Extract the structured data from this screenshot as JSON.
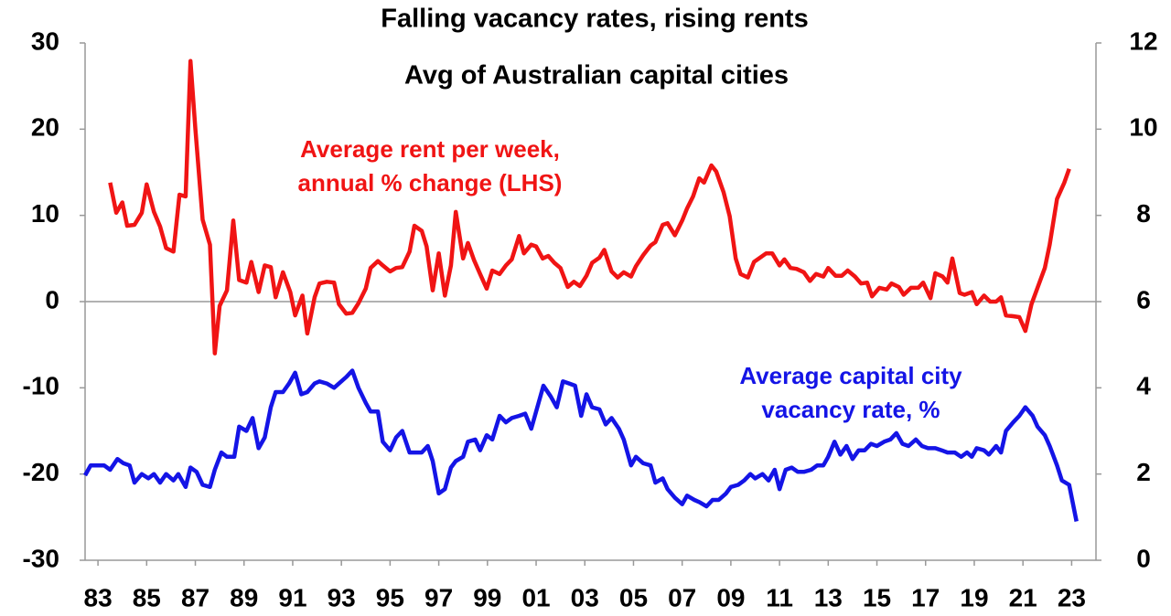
{
  "chart_data": {
    "type": "line",
    "title": "Falling vacancy rates, rising rents",
    "subtitle": "Avg of Australian capital cities",
    "annotations": [
      [
        "Average rent per week,",
        "annual % change (LHS)"
      ],
      [
        "Average capital city",
        "vacancy rate, %"
      ]
    ],
    "xlim": [
      1982.47,
      2024.0
    ],
    "xticks": [
      {
        "value": 1983,
        "label": "83"
      },
      {
        "value": 1985,
        "label": "85"
      },
      {
        "value": 1987,
        "label": "87"
      },
      {
        "value": 1989,
        "label": "89"
      },
      {
        "value": 1991,
        "label": "91"
      },
      {
        "value": 1993,
        "label": "93"
      },
      {
        "value": 1995,
        "label": "95"
      },
      {
        "value": 1997,
        "label": "97"
      },
      {
        "value": 1999,
        "label": "99"
      },
      {
        "value": 2001,
        "label": "01"
      },
      {
        "value": 2003,
        "label": "03"
      },
      {
        "value": 2005,
        "label": "05"
      },
      {
        "value": 2007,
        "label": "07"
      },
      {
        "value": 2009,
        "label": "09"
      },
      {
        "value": 2011,
        "label": "11"
      },
      {
        "value": 2013,
        "label": "13"
      },
      {
        "value": 2015,
        "label": "15"
      },
      {
        "value": 2017,
        "label": "17"
      },
      {
        "value": 2019,
        "label": "19"
      },
      {
        "value": 2021,
        "label": "21"
      },
      {
        "value": 2023,
        "label": "23"
      }
    ],
    "ylim": [
      -30,
      30
    ],
    "yticks": [
      -30,
      -20,
      -10,
      0,
      10,
      20,
      30
    ],
    "y2lim": [
      0,
      12
    ],
    "y2ticks": [
      0,
      2,
      4,
      6,
      8,
      10,
      12
    ],
    "series": [
      {
        "name": "Average rent per week, annual % change (LHS)",
        "color": "#f01414",
        "x": [
          1983.5,
          1983.75,
          1984.0,
          1984.2,
          1984.5,
          1984.8,
          1985.0,
          1985.3,
          1985.55,
          1985.8,
          1986.1,
          1986.35,
          1986.6,
          1986.8,
          1987.0,
          1987.3,
          1987.6,
          1987.8,
          1988.0,
          1988.3,
          1988.56,
          1988.8,
          1989.1,
          1989.3,
          1989.6,
          1989.85,
          1990.1,
          1990.3,
          1990.6,
          1990.9,
          1991.1,
          1991.4,
          1991.6,
          1991.9,
          1992.1,
          1992.4,
          1992.7,
          1992.9,
          1993.2,
          1993.45,
          1993.7,
          1994.0,
          1994.2,
          1994.5,
          1994.7,
          1995.0,
          1995.25,
          1995.5,
          1995.8,
          1996.0,
          1996.3,
          1996.5,
          1996.75,
          1997.0,
          1997.25,
          1997.5,
          1997.7,
          1998.0,
          1998.2,
          1998.45,
          1998.7,
          1998.97,
          1999.2,
          1999.5,
          1999.76,
          2000.0,
          2000.3,
          2000.5,
          2000.8,
          2001.0,
          2001.27,
          2001.5,
          2001.75,
          2002.0,
          2002.3,
          2002.55,
          2002.8,
          2003.07,
          2003.3,
          2003.6,
          2003.8,
          2004.1,
          2004.35,
          2004.6,
          2004.9,
          2005.1,
          2005.4,
          2005.7,
          2005.9,
          2006.2,
          2006.4,
          2006.7,
          2007.0,
          2007.2,
          2007.45,
          2007.7,
          2007.9,
          2008.2,
          2008.4,
          2008.7,
          2008.95,
          2009.2,
          2009.4,
          2009.7,
          2009.95,
          2010.2,
          2010.45,
          2010.7,
          2011.0,
          2011.2,
          2011.45,
          2011.7,
          2012.0,
          2012.25,
          2012.5,
          2012.8,
          2013.0,
          2013.3,
          2013.56,
          2013.8,
          2014.1,
          2014.35,
          2014.6,
          2014.8,
          2015.1,
          2015.4,
          2015.6,
          2015.9,
          2016.1,
          2016.4,
          2016.7,
          2016.9,
          2017.2,
          2017.4,
          2017.7,
          2017.9,
          2018.1,
          2018.4,
          2018.6,
          2018.9,
          2019.1,
          2019.4,
          2019.65,
          2019.9,
          2020.1,
          2020.3,
          2020.6,
          2020.85,
          2021.1,
          2021.35,
          2021.6,
          2021.9,
          2022.1,
          2022.4,
          2022.7,
          2022.9
        ],
        "values": [
          13.8,
          10.3,
          11.5,
          8.8,
          8.9,
          10.3,
          13.6,
          10.4,
          8.7,
          6.2,
          5.8,
          12.4,
          12.2,
          27.9,
          20.1,
          9.5,
          6.6,
          -6.0,
          -0.5,
          1.3,
          9.4,
          2.5,
          2.2,
          4.6,
          1.1,
          4.2,
          4.0,
          0.5,
          3.4,
          1.1,
          -1.6,
          0.7,
          -3.7,
          0.5,
          2.1,
          2.3,
          2.2,
          -0.3,
          -1.4,
          -1.3,
          -0.2,
          1.5,
          3.9,
          4.7,
          4.2,
          3.5,
          3.9,
          4.0,
          5.8,
          8.8,
          8.2,
          6.4,
          1.3,
          5.6,
          0.7,
          4.2,
          10.4,
          5.0,
          6.8,
          4.8,
          3.2,
          1.5,
          3.6,
          3.2,
          4.2,
          4.9,
          7.6,
          5.6,
          6.6,
          6.4,
          5.0,
          5.3,
          4.5,
          3.9,
          1.7,
          2.3,
          1.8,
          3.0,
          4.5,
          5.1,
          6.0,
          3.5,
          2.8,
          3.4,
          2.9,
          4.1,
          5.4,
          6.5,
          6.9,
          8.9,
          9.1,
          7.7,
          9.4,
          10.8,
          12.2,
          14.3,
          13.8,
          15.8,
          15.1,
          12.7,
          9.9,
          5.0,
          3.2,
          2.8,
          4.6,
          5.1,
          5.6,
          5.6,
          4.2,
          4.9,
          3.9,
          3.8,
          3.4,
          2.4,
          3.2,
          2.9,
          3.9,
          3.0,
          3.0,
          3.6,
          2.9,
          2.1,
          2.2,
          0.6,
          1.6,
          1.4,
          2.1,
          1.7,
          0.8,
          1.6,
          1.6,
          2.2,
          0.4,
          3.3,
          2.9,
          2.2,
          5.0,
          1.0,
          0.8,
          1.1,
          -0.3,
          0.7,
          0.0,
          0.0,
          0.5,
          -1.6,
          -1.7,
          -1.8,
          -3.4,
          -0.3,
          1.6,
          3.9,
          6.6,
          11.9,
          13.8,
          15.4
        ]
      },
      {
        "name": "Average capital city vacancy rate, %",
        "color": "#1414e6",
        "axis": "y2",
        "x": [
          1982.47,
          1982.7,
          1983.0,
          1983.25,
          1983.5,
          1983.8,
          1984.05,
          1984.3,
          1984.5,
          1984.8,
          1985.07,
          1985.3,
          1985.55,
          1985.8,
          1986.1,
          1986.3,
          1986.6,
          1986.8,
          1987.05,
          1987.3,
          1987.6,
          1987.8,
          1988.07,
          1988.3,
          1988.6,
          1988.8,
          1989.1,
          1989.35,
          1989.6,
          1989.85,
          1990.1,
          1990.3,
          1990.6,
          1990.85,
          1991.1,
          1991.35,
          1991.6,
          1991.9,
          1992.1,
          1992.4,
          1992.7,
          1992.9,
          1993.2,
          1993.45,
          1993.7,
          1994.0,
          1994.2,
          1994.5,
          1994.7,
          1995.0,
          1995.25,
          1995.5,
          1995.8,
          1996.05,
          1996.3,
          1996.55,
          1996.75,
          1997.0,
          1997.25,
          1997.5,
          1997.7,
          1998.0,
          1998.2,
          1998.5,
          1998.7,
          1998.97,
          1999.2,
          1999.5,
          1999.76,
          2000.0,
          2000.3,
          2000.55,
          2000.8,
          2001.1,
          2001.3,
          2001.6,
          2001.85,
          2002.1,
          2002.36,
          2002.6,
          2002.85,
          2003.07,
          2003.3,
          2003.6,
          2003.86,
          2004.1,
          2004.4,
          2004.6,
          2004.9,
          2005.1,
          2005.4,
          2005.7,
          2005.9,
          2006.2,
          2006.4,
          2006.7,
          2007.0,
          2007.2,
          2007.5,
          2007.7,
          2008.0,
          2008.25,
          2008.5,
          2008.8,
          2009.0,
          2009.3,
          2009.55,
          2009.8,
          2010.0,
          2010.3,
          2010.55,
          2010.8,
          2011.0,
          2011.25,
          2011.5,
          2011.75,
          2012.0,
          2012.3,
          2012.55,
          2012.8,
          2013.0,
          2013.26,
          2013.5,
          2013.75,
          2014.0,
          2014.25,
          2014.5,
          2014.76,
          2015.0,
          2015.3,
          2015.55,
          2015.8,
          2016.05,
          2016.3,
          2016.6,
          2016.85,
          2017.1,
          2017.4,
          2017.66,
          2017.9,
          2018.2,
          2018.46,
          2018.7,
          2018.9,
          2019.1,
          2019.4,
          2019.6,
          2019.9,
          2020.1,
          2020.3,
          2020.6,
          2020.85,
          2021.1,
          2021.4,
          2021.6,
          2021.9,
          2022.1,
          2022.4,
          2022.6,
          2022.9,
          2023.2
        ],
        "values": [
          1.97,
          2.2,
          2.2,
          2.2,
          2.1,
          2.35,
          2.25,
          2.2,
          1.8,
          2.0,
          1.9,
          2.0,
          1.8,
          2.0,
          1.85,
          2.0,
          1.7,
          2.15,
          2.05,
          1.75,
          1.7,
          2.1,
          2.5,
          2.4,
          2.4,
          3.1,
          3.0,
          3.3,
          2.6,
          2.85,
          3.55,
          3.9,
          3.9,
          4.1,
          4.35,
          3.85,
          3.9,
          4.1,
          4.15,
          4.1,
          4.0,
          4.1,
          4.25,
          4.4,
          4.0,
          3.65,
          3.45,
          3.45,
          2.75,
          2.55,
          2.85,
          3.0,
          2.5,
          2.5,
          2.5,
          2.65,
          2.3,
          1.55,
          1.65,
          2.15,
          2.3,
          2.4,
          2.75,
          2.8,
          2.55,
          2.9,
          2.8,
          3.35,
          3.2,
          3.3,
          3.35,
          3.4,
          3.05,
          3.65,
          4.05,
          3.8,
          3.55,
          4.15,
          4.1,
          4.05,
          3.35,
          3.85,
          3.55,
          3.5,
          3.15,
          3.3,
          3.05,
          2.8,
          2.2,
          2.4,
          2.25,
          2.2,
          1.8,
          1.9,
          1.65,
          1.45,
          1.3,
          1.5,
          1.4,
          1.35,
          1.25,
          1.4,
          1.4,
          1.55,
          1.7,
          1.75,
          1.85,
          2.0,
          1.9,
          2.0,
          1.85,
          2.1,
          1.65,
          2.1,
          2.15,
          2.05,
          2.05,
          2.1,
          2.2,
          2.2,
          2.4,
          2.75,
          2.45,
          2.65,
          2.35,
          2.55,
          2.55,
          2.7,
          2.65,
          2.75,
          2.8,
          2.95,
          2.7,
          2.65,
          2.8,
          2.65,
          2.6,
          2.6,
          2.55,
          2.5,
          2.5,
          2.4,
          2.5,
          2.4,
          2.6,
          2.55,
          2.45,
          2.65,
          2.5,
          3.0,
          3.2,
          3.35,
          3.55,
          3.35,
          3.1,
          2.9,
          2.65,
          2.2,
          1.85,
          1.75,
          0.9
        ]
      }
    ]
  }
}
